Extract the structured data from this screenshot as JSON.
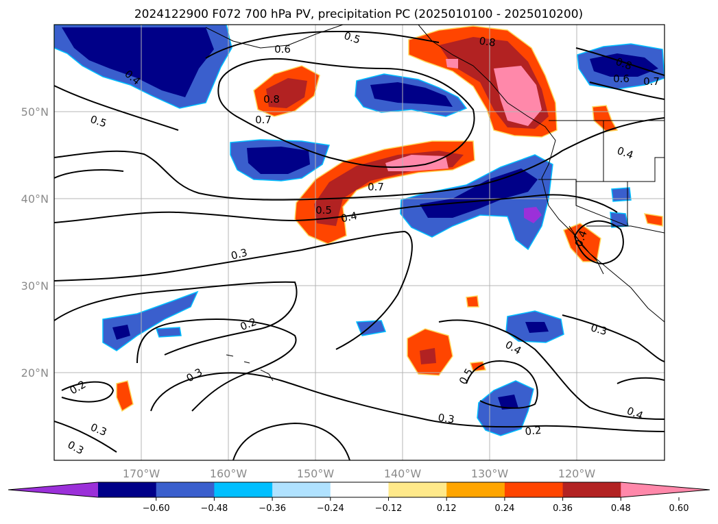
{
  "title": "2024122900 F072 700 hPa PV, precipitation PC (2025010100 - 2025010200)",
  "lon_labels": [
    "170°W",
    "160°W",
    "150°W",
    "140°W",
    "130°W",
    "120°W"
  ],
  "lat_labels": [
    "50°N",
    "40°N",
    "30°N",
    "20°N"
  ],
  "colorbar": {
    "colors": [
      "#9b30d9",
      "#000088",
      "#3a5fcd",
      "#00bfff",
      "#b0e2ff",
      "#ffffff",
      "#ffe98a",
      "#ffa500",
      "#ff4500",
      "#b22222",
      "#ff88aa"
    ],
    "tick_labels": [
      "−0.60",
      "−0.48",
      "−0.36",
      "−0.24",
      "−0.12",
      "0.12",
      "0.24",
      "0.36",
      "0.48",
      "0.60"
    ]
  },
  "contour_labels": [
    "0.5",
    "0.6",
    "0.8",
    "0.4",
    "0.5",
    "0.8",
    "0.7",
    "0.8",
    "0.6",
    "0.7",
    "0.4",
    "0.7",
    "0.5",
    "0.4",
    "0.3",
    "0.4",
    "0.2",
    "0.3",
    "0.2",
    "0.3",
    "0.3",
    "0.4",
    "0.3",
    "0.5",
    "0.3",
    "0.2",
    "0.4"
  ]
}
